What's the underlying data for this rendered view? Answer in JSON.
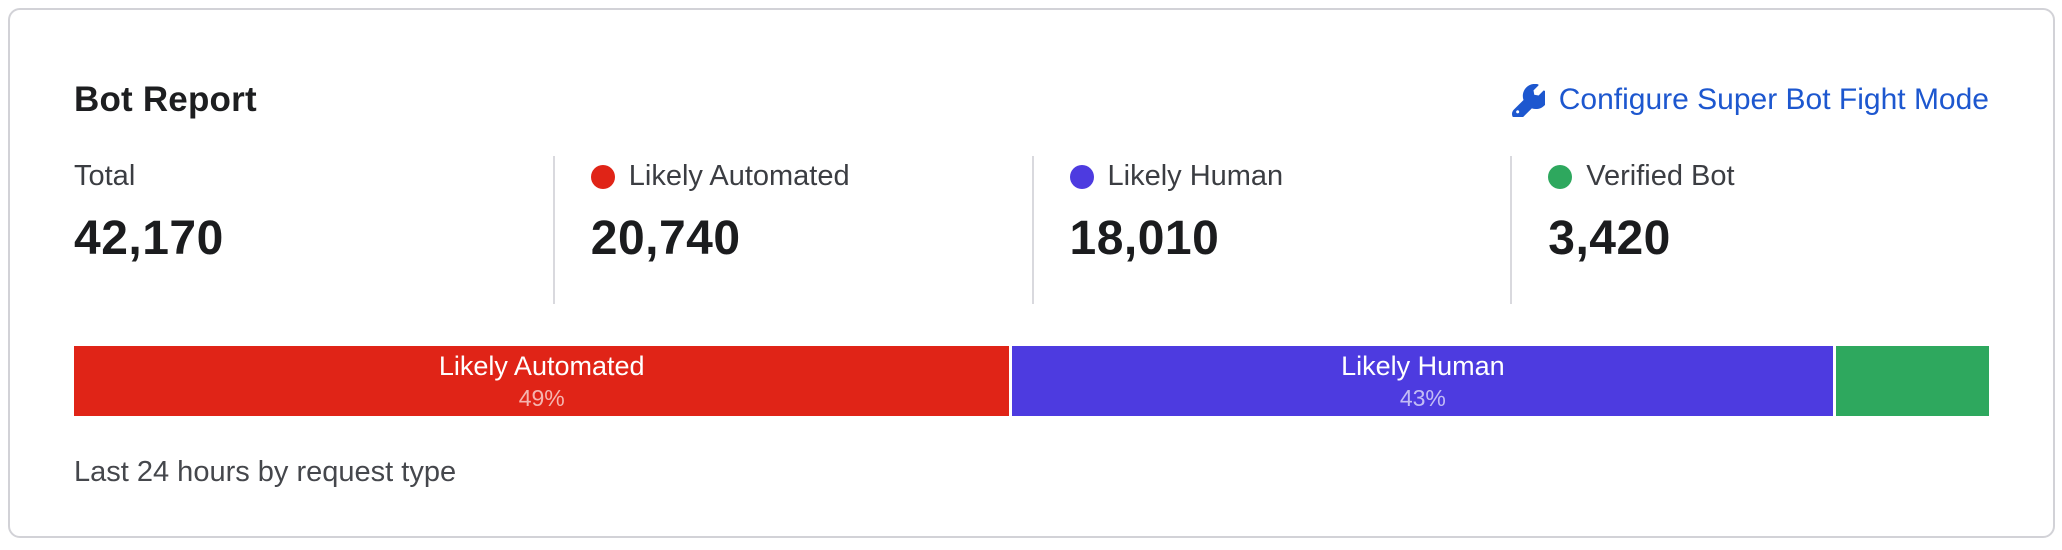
{
  "card": {
    "title": "Bot Report",
    "configure_link": {
      "label": "Configure Super Bot Fight Mode",
      "icon": "wrench-icon",
      "color": "#1d57cf"
    },
    "footer": "Last 24 hours by request type"
  },
  "stats": [
    {
      "label": "Total",
      "value": "42,170"
    },
    {
      "label": "Likely Automated",
      "value": "20,740",
      "dot_color": "#e02417"
    },
    {
      "label": "Likely Human",
      "value": "18,010",
      "dot_color": "#4d3be0"
    },
    {
      "label": "Verified Bot",
      "value": "3,420",
      "dot_color": "#2ea85e"
    }
  ],
  "chart_data": {
    "type": "bar",
    "stacked": true,
    "title": "Bot Report",
    "subtitle": "Last 24 hours by request type",
    "total": 42170,
    "segments": [
      {
        "label": "Likely Automated",
        "value": 20740,
        "percent": 49,
        "percent_label": "49%",
        "color": "#e02417",
        "label_visible": true
      },
      {
        "label": "Likely Human",
        "value": 18010,
        "percent": 43,
        "percent_label": "43%",
        "color": "#4d3be0",
        "label_visible": true
      },
      {
        "label": "Verified Bot",
        "value": 3420,
        "percent": 8,
        "percent_label": "",
        "color": "#2ea85e",
        "label_visible": false
      }
    ]
  }
}
